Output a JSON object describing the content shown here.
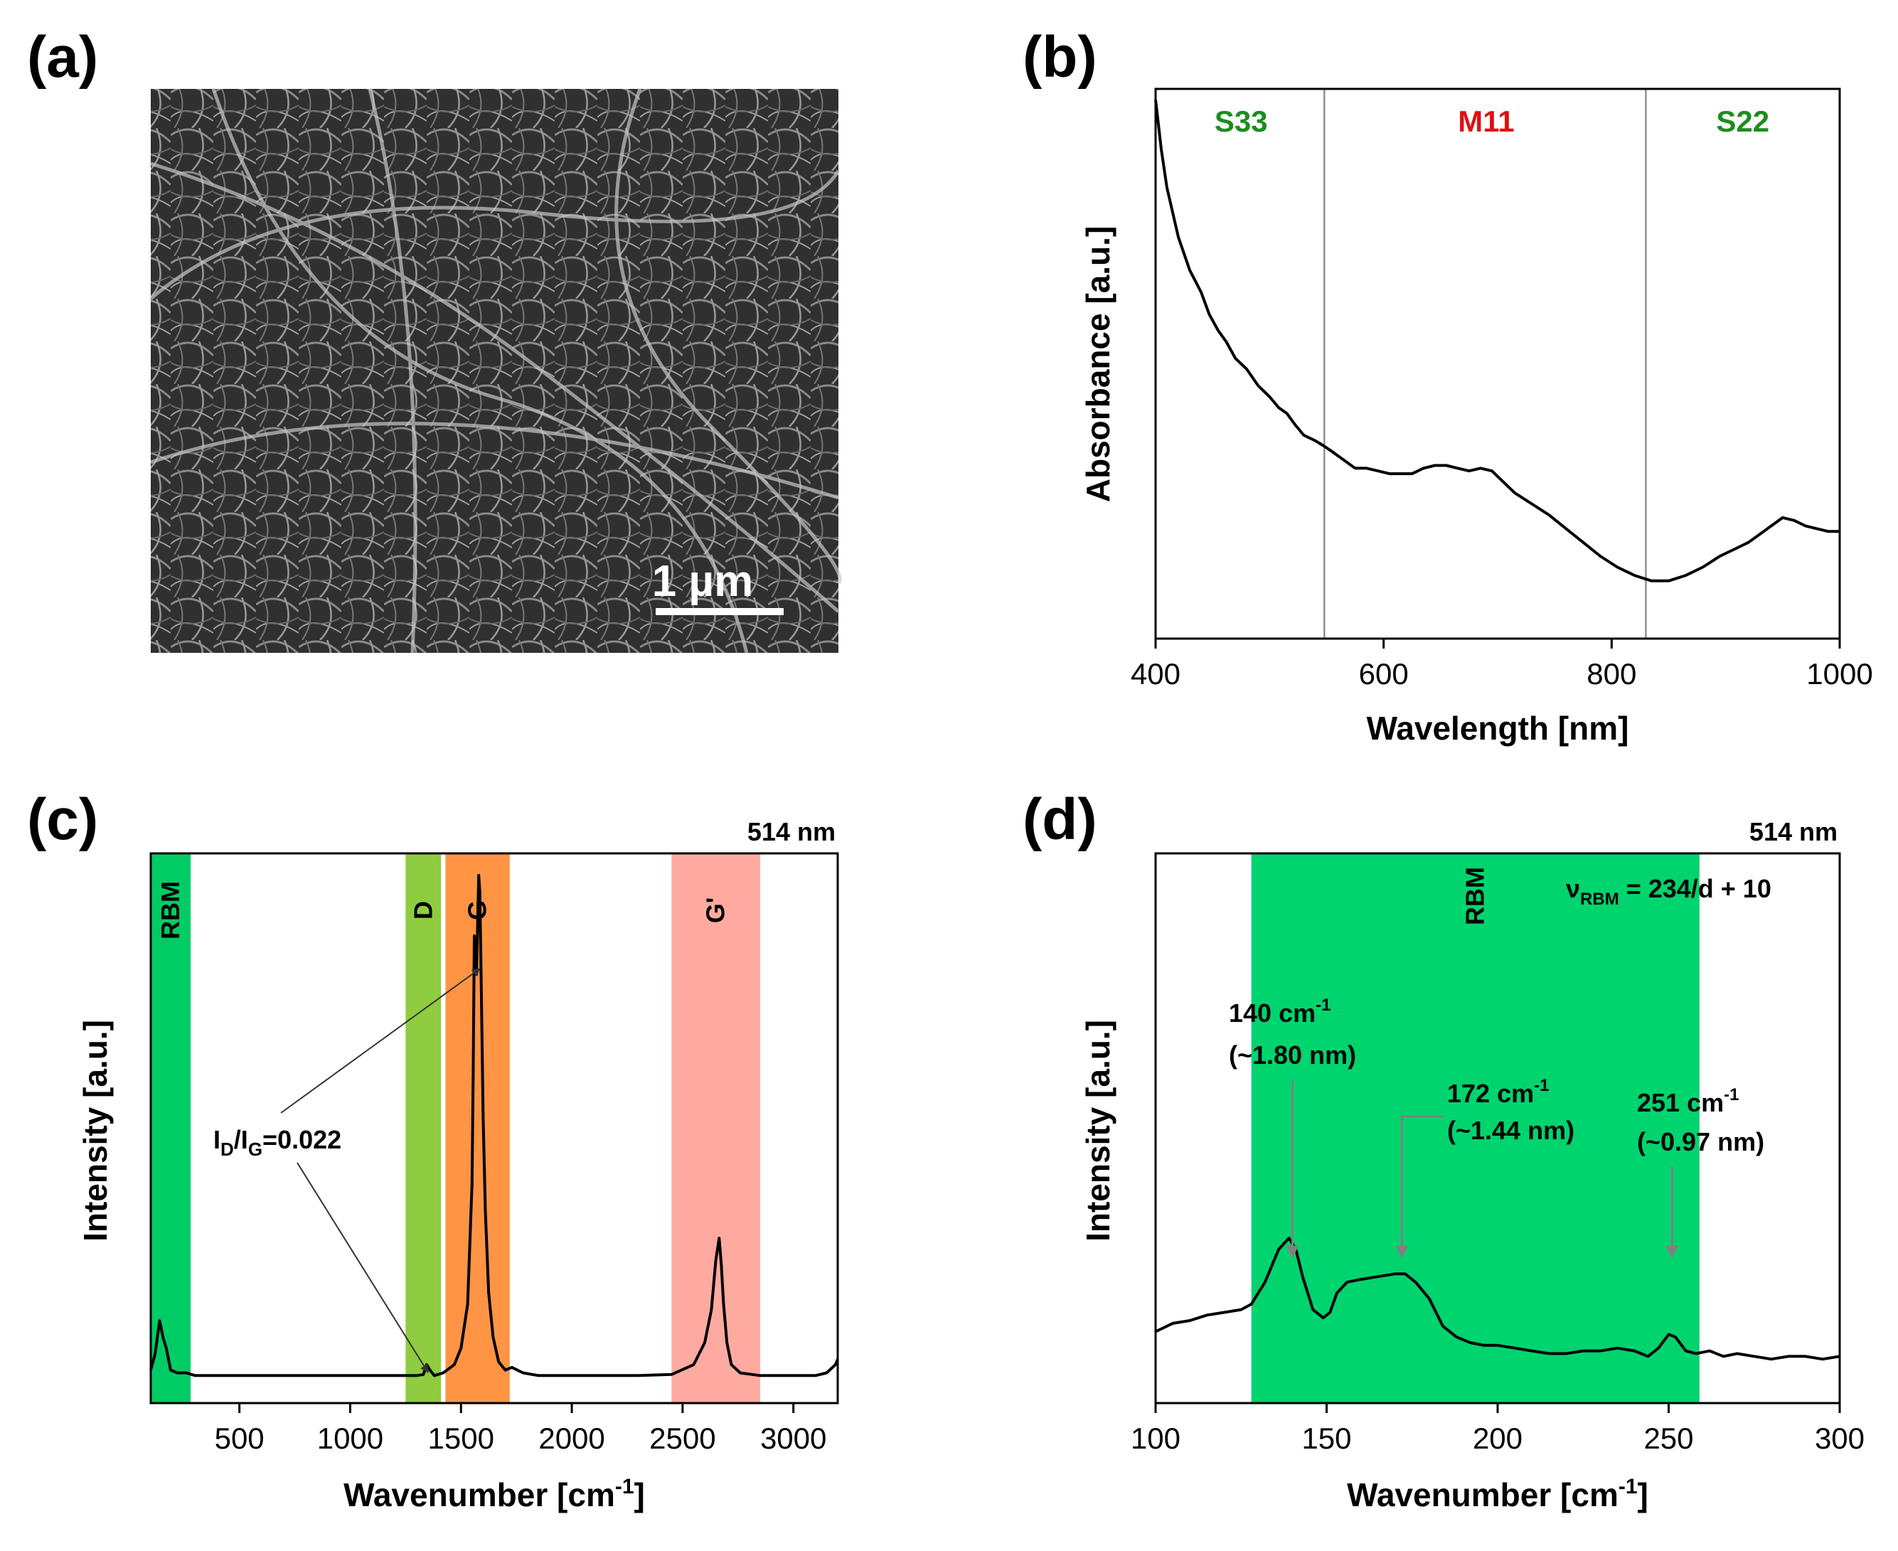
{
  "panels": {
    "a": {
      "label": "(a)",
      "scale_bar": "1 µm"
    },
    "b": {
      "label": "(b)"
    },
    "c": {
      "label": "(c)"
    },
    "d": {
      "label": "(d)"
    }
  },
  "chart_data": [
    {
      "id": "b",
      "type": "line",
      "xlabel": "Wavelength [nm]",
      "ylabel": "Absorbance [a.u.]",
      "xlim": [
        400,
        1000
      ],
      "ylim": [
        0,
        1
      ],
      "xticks": [
        "400",
        "600",
        "800",
        "1000"
      ],
      "region_dividers": [
        548,
        830
      ],
      "regions": [
        {
          "label": "S33",
          "x_center": 475,
          "color": "#1e8c1e"
        },
        {
          "label": "M11",
          "x_center": 690,
          "color": "#e01010"
        },
        {
          "label": "S22",
          "x_center": 915,
          "color": "#1e8c1e"
        }
      ],
      "x": [
        400,
        405,
        410,
        420,
        430,
        440,
        447,
        455,
        462,
        470,
        480,
        490,
        500,
        508,
        515,
        522,
        530,
        540,
        548,
        555,
        565,
        575,
        585,
        595,
        605,
        615,
        625,
        635,
        645,
        655,
        665,
        675,
        685,
        695,
        705,
        715,
        730,
        745,
        760,
        775,
        790,
        805,
        820,
        835,
        850,
        865,
        880,
        895,
        910,
        920,
        930,
        940,
        950,
        960,
        970,
        980,
        990,
        1000
      ],
      "y": [
        0.98,
        0.89,
        0.82,
        0.73,
        0.67,
        0.63,
        0.59,
        0.56,
        0.54,
        0.51,
        0.49,
        0.46,
        0.44,
        0.42,
        0.41,
        0.39,
        0.37,
        0.36,
        0.35,
        0.34,
        0.325,
        0.31,
        0.31,
        0.305,
        0.3,
        0.3,
        0.3,
        0.31,
        0.315,
        0.315,
        0.31,
        0.305,
        0.31,
        0.305,
        0.285,
        0.265,
        0.245,
        0.225,
        0.2,
        0.175,
        0.15,
        0.13,
        0.115,
        0.105,
        0.105,
        0.115,
        0.13,
        0.15,
        0.165,
        0.175,
        0.19,
        0.205,
        0.22,
        0.215,
        0.205,
        0.2,
        0.195,
        0.195
      ]
    },
    {
      "id": "c",
      "type": "line",
      "xlabel": "Wavenumber [cm",
      "xlabel_sup": "-1",
      "xlabel_end": "]",
      "ylabel": "Intensity [a.u.]",
      "laser": "514 nm",
      "xlim": [
        100,
        3200
      ],
      "ylim": [
        0,
        1
      ],
      "xticks": [
        "500",
        "1000",
        "1500",
        "2000",
        "2500",
        "3000"
      ],
      "bands": [
        {
          "label": "RBM",
          "from": 100,
          "to": 280,
          "color": "#00cc66"
        },
        {
          "label": "D",
          "from": 1250,
          "to": 1410,
          "color": "#8fcc40"
        },
        {
          "label": "G",
          "from": 1430,
          "to": 1720,
          "color": "#ff9444"
        },
        {
          "label": "G'",
          "from": 2450,
          "to": 2850,
          "color": "#ffaaa0"
        }
      ],
      "annotation": {
        "main": "I",
        "sub1": "D",
        "mid": "/I",
        "sub2": "G",
        "value": "=0.022"
      },
      "x": [
        100,
        120,
        130,
        140,
        155,
        170,
        190,
        220,
        260,
        300,
        400,
        500,
        600,
        700,
        800,
        900,
        1000,
        1100,
        1200,
        1250,
        1300,
        1330,
        1345,
        1360,
        1380,
        1420,
        1470,
        1500,
        1530,
        1550,
        1555,
        1560,
        1570,
        1580,
        1585,
        1590,
        1600,
        1610,
        1625,
        1645,
        1670,
        1700,
        1730,
        1780,
        1850,
        1950,
        2100,
        2300,
        2450,
        2550,
        2600,
        2630,
        2650,
        2665,
        2675,
        2685,
        2700,
        2720,
        2760,
        2850,
        3000,
        3100,
        3150,
        3190,
        3200
      ],
      "y": [
        0.06,
        0.09,
        0.12,
        0.15,
        0.12,
        0.1,
        0.06,
        0.055,
        0.055,
        0.05,
        0.05,
        0.05,
        0.05,
        0.05,
        0.05,
        0.05,
        0.05,
        0.05,
        0.05,
        0.05,
        0.05,
        0.052,
        0.07,
        0.06,
        0.05,
        0.055,
        0.07,
        0.1,
        0.18,
        0.4,
        0.6,
        0.85,
        0.78,
        0.96,
        0.93,
        0.8,
        0.52,
        0.35,
        0.2,
        0.12,
        0.075,
        0.06,
        0.065,
        0.055,
        0.05,
        0.05,
        0.05,
        0.05,
        0.052,
        0.07,
        0.11,
        0.17,
        0.26,
        0.3,
        0.25,
        0.18,
        0.11,
        0.07,
        0.055,
        0.05,
        0.05,
        0.05,
        0.055,
        0.07,
        0.08
      ]
    },
    {
      "id": "d",
      "type": "line",
      "xlabel": "Wavenumber [cm",
      "xlabel_sup": "-1",
      "xlabel_end": "]",
      "ylabel": "Intensity [a.u.]",
      "laser": "514 nm",
      "equation": {
        "nu": "ν",
        "sub": "RBM",
        "rest": " = 234/d + 10"
      },
      "xlim": [
        100,
        300
      ],
      "ylim": [
        0,
        1
      ],
      "xticks": [
        "100",
        "150",
        "200",
        "250",
        "300"
      ],
      "bands": [
        {
          "label": "RBM",
          "from": 128,
          "to": 259,
          "color": "#00d46e"
        }
      ],
      "peaks": [
        {
          "pos": "140 cm",
          "sup": "-1",
          "size": "(~1.80 nm)",
          "x": 140
        },
        {
          "pos": "172 cm",
          "sup": "-1",
          "size": "(~1.44 nm)",
          "x": 172
        },
        {
          "pos": "251 cm",
          "sup": "-1",
          "size": "(~0.97 nm)",
          "x": 251
        }
      ],
      "x": [
        100,
        105,
        110,
        115,
        120,
        125,
        128,
        132,
        136,
        139,
        141,
        143,
        146,
        149,
        151,
        153,
        156,
        160,
        165,
        170,
        173,
        176,
        180,
        184,
        188,
        192,
        196,
        200,
        205,
        210,
        215,
        220,
        225,
        230,
        235,
        240,
        244,
        247,
        250,
        252,
        255,
        258,
        262,
        266,
        270,
        275,
        280,
        285,
        290,
        295,
        300
      ],
      "y": [
        0.13,
        0.145,
        0.15,
        0.16,
        0.165,
        0.17,
        0.18,
        0.22,
        0.28,
        0.3,
        0.28,
        0.23,
        0.17,
        0.155,
        0.165,
        0.2,
        0.22,
        0.225,
        0.23,
        0.235,
        0.235,
        0.22,
        0.19,
        0.14,
        0.12,
        0.11,
        0.105,
        0.105,
        0.1,
        0.095,
        0.09,
        0.09,
        0.095,
        0.095,
        0.1,
        0.095,
        0.085,
        0.1,
        0.125,
        0.12,
        0.095,
        0.09,
        0.095,
        0.085,
        0.09,
        0.085,
        0.08,
        0.085,
        0.085,
        0.08,
        0.085
      ]
    }
  ]
}
